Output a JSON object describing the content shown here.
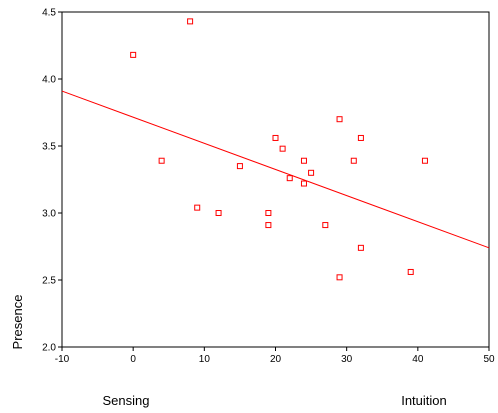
{
  "chart_data": {
    "type": "scatter",
    "title": "",
    "xlabel": "",
    "ylabel": "Presence",
    "xlim": [
      -10,
      50
    ],
    "ylim": [
      2.0,
      4.5
    ],
    "xticks": [
      "-10",
      "0",
      "10",
      "20",
      "30",
      "40",
      "50"
    ],
    "yticks": [
      "2.0",
      "2.5",
      "3.0",
      "3.5",
      "4.0",
      "4.5"
    ],
    "x_end_labels": {
      "left": "Sensing",
      "right": "Intuition"
    },
    "grid": false,
    "legend": "none",
    "marker_color": "#ff0000",
    "line_color": "#ff0000",
    "points": [
      {
        "x": 0,
        "y": 4.18
      },
      {
        "x": 8,
        "y": 4.43
      },
      {
        "x": 4,
        "y": 3.39
      },
      {
        "x": 9,
        "y": 3.04
      },
      {
        "x": 12,
        "y": 3.0
      },
      {
        "x": 15,
        "y": 3.35
      },
      {
        "x": 19,
        "y": 3.0
      },
      {
        "x": 19,
        "y": 2.91
      },
      {
        "x": 20,
        "y": 3.56
      },
      {
        "x": 21,
        "y": 3.48
      },
      {
        "x": 22,
        "y": 3.26
      },
      {
        "x": 24,
        "y": 3.39
      },
      {
        "x": 24,
        "y": 3.22
      },
      {
        "x": 25,
        "y": 3.3
      },
      {
        "x": 27,
        "y": 2.91
      },
      {
        "x": 29,
        "y": 3.7
      },
      {
        "x": 29,
        "y": 2.52
      },
      {
        "x": 31,
        "y": 3.39
      },
      {
        "x": 32,
        "y": 3.56
      },
      {
        "x": 32,
        "y": 2.74
      },
      {
        "x": 39,
        "y": 2.56
      },
      {
        "x": 41,
        "y": 3.39
      }
    ],
    "fit_line": {
      "type": "linear",
      "x": [
        -10,
        50
      ],
      "y": [
        3.91,
        2.74
      ]
    }
  }
}
